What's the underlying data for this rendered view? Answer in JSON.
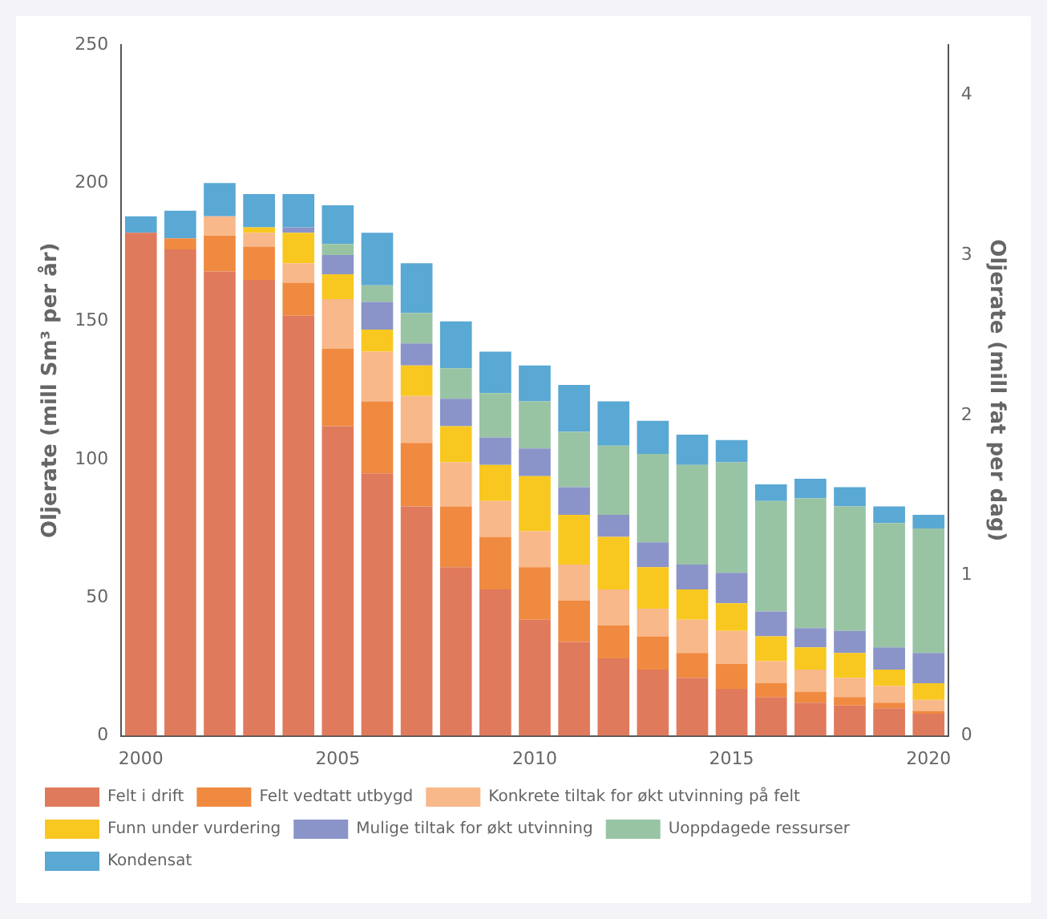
{
  "chart_data": {
    "type": "bar",
    "stacked": true,
    "categories": [
      "2000",
      null,
      null,
      null,
      null,
      "2005",
      null,
      null,
      null,
      null,
      "2010",
      null,
      null,
      null,
      null,
      "2015",
      null,
      null,
      null,
      null,
      "2020"
    ],
    "ylabel": "Oljerate (mill Sm³ per år)",
    "y2label": "Oljerate (mill fat per dag)",
    "ylim": [
      0,
      250
    ],
    "yticks": [
      0,
      50,
      100,
      150,
      200,
      250
    ],
    "y2lim": [
      0,
      4.31
    ],
    "y2ticks": [
      0,
      1,
      2,
      3,
      4
    ],
    "grid": false,
    "legend": "bottom",
    "series": [
      {
        "name": "Felt i drift",
        "color": "#e07a5c",
        "values": [
          182,
          176,
          168,
          165,
          152,
          112,
          95,
          83,
          61,
          53,
          42,
          34,
          28,
          24,
          21,
          17,
          14,
          12,
          11,
          10,
          8
        ]
      },
      {
        "name": "Felt vedtatt utbygd",
        "color": "#f08a40",
        "values": [
          0,
          4,
          13,
          12,
          12,
          28,
          26,
          23,
          22,
          19,
          19,
          15,
          12,
          12,
          9,
          9,
          5,
          4,
          3,
          2,
          1
        ]
      },
      {
        "name": "Konkrete tiltak for økt utvinning på felt",
        "color": "#f8b88a",
        "values": [
          0,
          0,
          7,
          5,
          7,
          18,
          18,
          17,
          16,
          13,
          13,
          13,
          13,
          10,
          12,
          12,
          8,
          8,
          7,
          6,
          4
        ]
      },
      {
        "name": "Funn under vurdering",
        "color": "#f8c820",
        "values": [
          0,
          0,
          0,
          2,
          11,
          9,
          8,
          11,
          13,
          13,
          20,
          18,
          19,
          15,
          11,
          10,
          9,
          8,
          9,
          6,
          6
        ]
      },
      {
        "name": "Mulige tiltak for økt utvinning",
        "color": "#8a94c8",
        "values": [
          0,
          0,
          0,
          0,
          2,
          7,
          10,
          8,
          10,
          10,
          10,
          10,
          8,
          9,
          9,
          11,
          9,
          7,
          8,
          8,
          11
        ]
      },
      {
        "name": "Uoppdagede ressurser",
        "color": "#98c4a4",
        "values": [
          0,
          0,
          0,
          0,
          0,
          4,
          6,
          11,
          11,
          16,
          17,
          20,
          25,
          32,
          36,
          40,
          40,
          47,
          45,
          45,
          45
        ]
      },
      {
        "name": "Kondensat",
        "color": "#5aa8d4",
        "values": [
          6,
          10,
          12,
          12,
          12,
          14,
          19,
          18,
          17,
          15,
          13,
          17,
          16,
          12,
          11,
          8,
          6,
          7,
          7,
          6,
          5
        ]
      }
    ]
  }
}
